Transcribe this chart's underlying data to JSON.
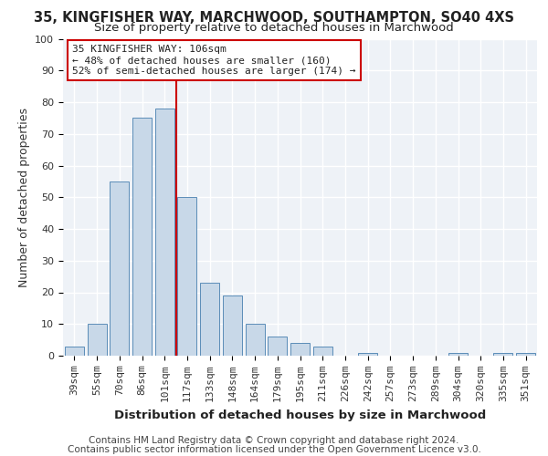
{
  "title_line1": "35, KINGFISHER WAY, MARCHWOOD, SOUTHAMPTON, SO40 4XS",
  "title_line2": "Size of property relative to detached houses in Marchwood",
  "xlabel": "Distribution of detached houses by size in Marchwood",
  "ylabel": "Number of detached properties",
  "categories": [
    "39sqm",
    "55sqm",
    "70sqm",
    "86sqm",
    "101sqm",
    "117sqm",
    "133sqm",
    "148sqm",
    "164sqm",
    "179sqm",
    "195sqm",
    "211sqm",
    "226sqm",
    "242sqm",
    "257sqm",
    "273sqm",
    "289sqm",
    "304sqm",
    "320sqm",
    "335sqm",
    "351sqm"
  ],
  "values": [
    3,
    10,
    55,
    75,
    78,
    50,
    23,
    19,
    10,
    6,
    4,
    3,
    0,
    1,
    0,
    0,
    0,
    1,
    0,
    1,
    1
  ],
  "bar_color": "#c8d8e8",
  "bar_edge_color": "#5b8db8",
  "vline_x": 4.5,
  "vline_color": "#cc0000",
  "annotation_line1": "35 KINGFISHER WAY: 106sqm",
  "annotation_line2": "← 48% of detached houses are smaller (160)",
  "annotation_line3": "52% of semi-detached houses are larger (174) →",
  "annotation_box_color": "#ffffff",
  "annotation_box_edge": "#cc0000",
  "ylim": [
    0,
    100
  ],
  "yticks": [
    0,
    10,
    20,
    30,
    40,
    50,
    60,
    70,
    80,
    90,
    100
  ],
  "footnote_line1": "Contains HM Land Registry data © Crown copyright and database right 2024.",
  "footnote_line2": "Contains public sector information licensed under the Open Government Licence v3.0.",
  "bg_color": "#eef2f7",
  "grid_color": "#ffffff",
  "title_fontsize": 10.5,
  "subtitle_fontsize": 9.5,
  "ylabel_fontsize": 9,
  "xlabel_fontsize": 9.5,
  "tick_fontsize": 8,
  "annotation_fontsize": 8,
  "footnote_fontsize": 7.5
}
